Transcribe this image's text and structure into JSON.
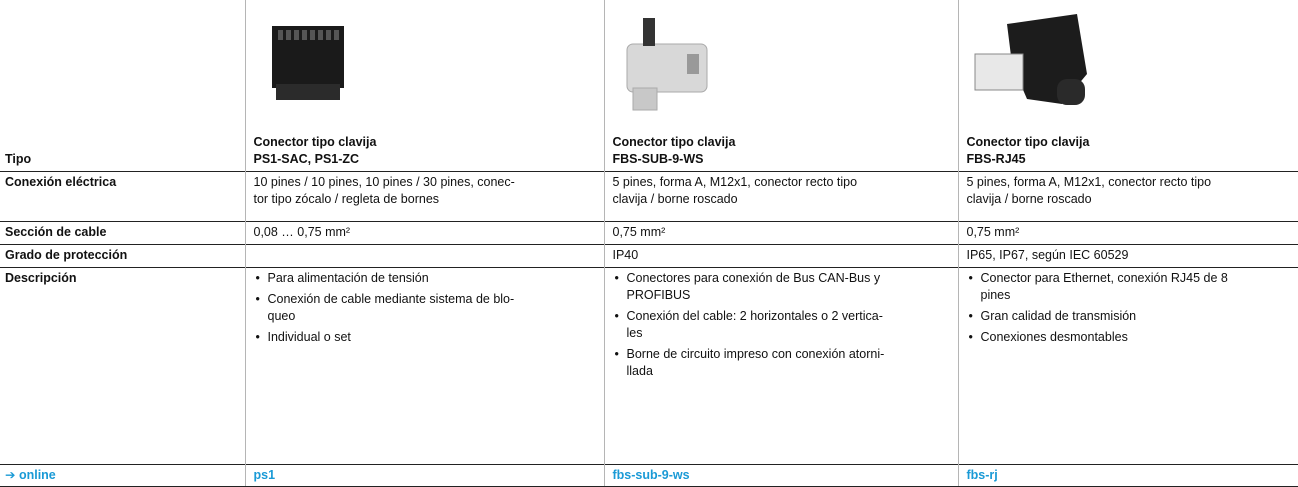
{
  "table": {
    "type_label": "Tipo",
    "columns": [
      {
        "title": "Conector tipo clavija",
        "model": "PS1-SAC, PS1-ZC"
      },
      {
        "title": "Conector tipo clavija",
        "model": "FBS-SUB-9-WS"
      },
      {
        "title": "Conector tipo clavija",
        "model": "FBS-RJ45"
      }
    ],
    "rows": [
      {
        "label": "Conexión eléctrica",
        "cells": [
          [
            "10 pines / 10 pines, 10 pines / 30 pines, conec-",
            "tor tipo zócalo / regleta de bornes"
          ],
          [
            "5 pines, forma A, M12x1, conector recto tipo",
            "clavija / borne roscado"
          ],
          [
            "5 pines, forma A, M12x1, conector recto tipo",
            "clavija / borne roscado"
          ]
        ]
      },
      {
        "label": "Sección de cable",
        "cells": [
          [
            "0,08 … 0,75 mm²"
          ],
          [
            "0,75 mm²"
          ],
          [
            "0,75 mm²"
          ]
        ]
      },
      {
        "label": "Grado de protección",
        "cells": [
          [],
          [
            "IP40"
          ],
          [
            "IP65, IP67, según IEC 60529"
          ]
        ]
      }
    ],
    "description": {
      "label": "Descripción",
      "cells": [
        [
          [
            "Para alimentación de tensión"
          ],
          [
            "Conexión de cable mediante sistema de blo-",
            "queo"
          ],
          [
            "Individual o set"
          ]
        ],
        [
          [
            "Conectores para conexión de Bus CAN-Bus y",
            "PROFIBUS"
          ],
          [
            "Conexión del cable: 2 horizontales o 2 vertica-",
            "les"
          ],
          [
            "Borne de circuito impreso con conexión atorni-",
            "llada"
          ]
        ],
        [
          [
            "Conector para Ethernet, conexión RJ45 de 8",
            "pines"
          ],
          [
            "Gran calidad de transmisión"
          ],
          [
            "Conexiones desmontables"
          ]
        ]
      ]
    },
    "online": {
      "label": "➔ online",
      "links": [
        "ps1",
        "fbs-sub-9-ws",
        "fbs-rj"
      ]
    }
  }
}
